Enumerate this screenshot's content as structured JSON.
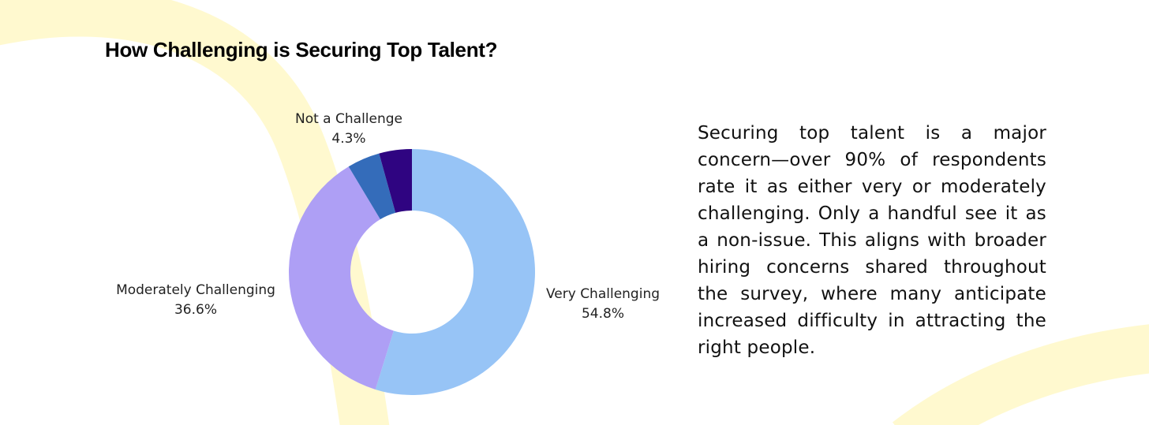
{
  "chart_data": {
    "type": "pie",
    "title": "How Challenging is Securing Top Talent?",
    "donut": true,
    "start_angle_deg": 0,
    "direction": "clockwise",
    "slices": [
      {
        "label": "Very Challenging",
        "value_label": "54.8%",
        "value": 54.8,
        "color": "#97c4f6"
      },
      {
        "label": "Moderately Challenging",
        "value_label": "36.6%",
        "value": 36.6,
        "color": "#ae9ff5"
      },
      {
        "label": "Not a Challenge",
        "value_label": "4.3%",
        "value": 4.3,
        "color": "#346cba"
      },
      {
        "label": "",
        "value_label": "",
        "value": 4.3,
        "color": "#2f0481"
      }
    ]
  },
  "summary": {
    "text": "Securing top talent is a major concern—over 90% of respondents rate it as either very or moderately challenging. Only a handful see it as a non-issue. This aligns with broader hiring concerns shared throughout the survey, where many anticipate increased difficulty in attracting the right people."
  },
  "colors": {
    "background": "#ffffff",
    "decoration": "#fff9cf"
  }
}
